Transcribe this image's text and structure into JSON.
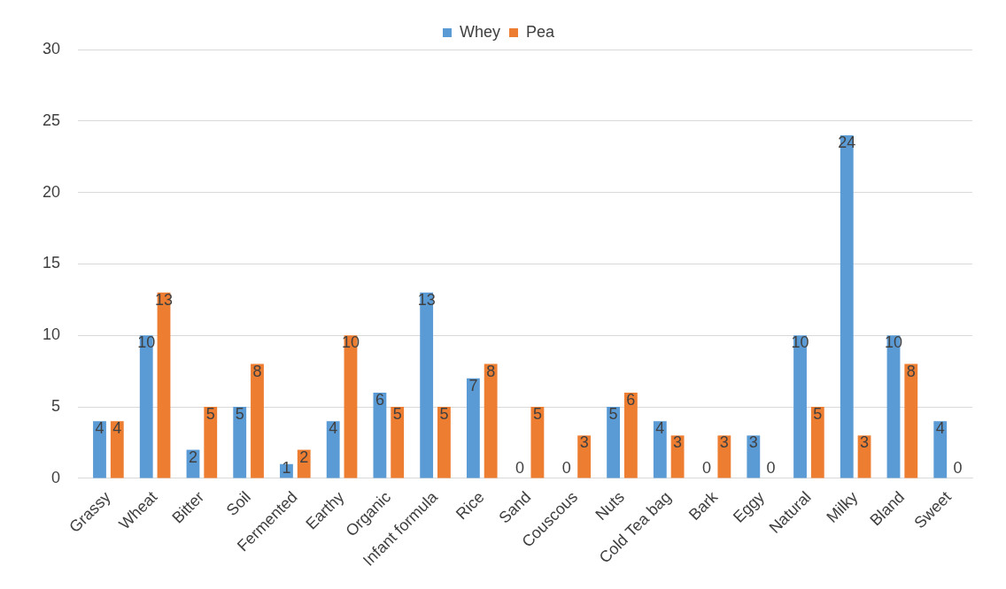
{
  "chart_data": {
    "type": "bar",
    "categories": [
      "Grassy",
      "Wheat",
      "Bitter",
      "Soil",
      "Fermented",
      "Earthy",
      "Organic",
      "Infant formula",
      "Rice",
      "Sand",
      "Couscous",
      "Nuts",
      "Cold Tea bag",
      "Bark",
      "Eggy",
      "Natural",
      "Milky",
      "Bland",
      "Sweet"
    ],
    "series": [
      {
        "name": "Whey",
        "color": "#5b9bd5",
        "values": [
          4,
          10,
          2,
          5,
          1,
          4,
          6,
          13,
          7,
          0,
          0,
          5,
          4,
          0,
          3,
          10,
          24,
          10,
          4
        ]
      },
      {
        "name": "Pea",
        "color": "#ed7d31",
        "values": [
          4,
          13,
          5,
          8,
          2,
          10,
          5,
          5,
          8,
          5,
          3,
          6,
          3,
          3,
          0,
          5,
          3,
          8,
          0
        ]
      }
    ],
    "ylim": [
      0,
      30
    ],
    "yticks": [
      0,
      5,
      10,
      15,
      20,
      25,
      30
    ],
    "grid": "y",
    "legend": "top",
    "data_labels": true
  }
}
